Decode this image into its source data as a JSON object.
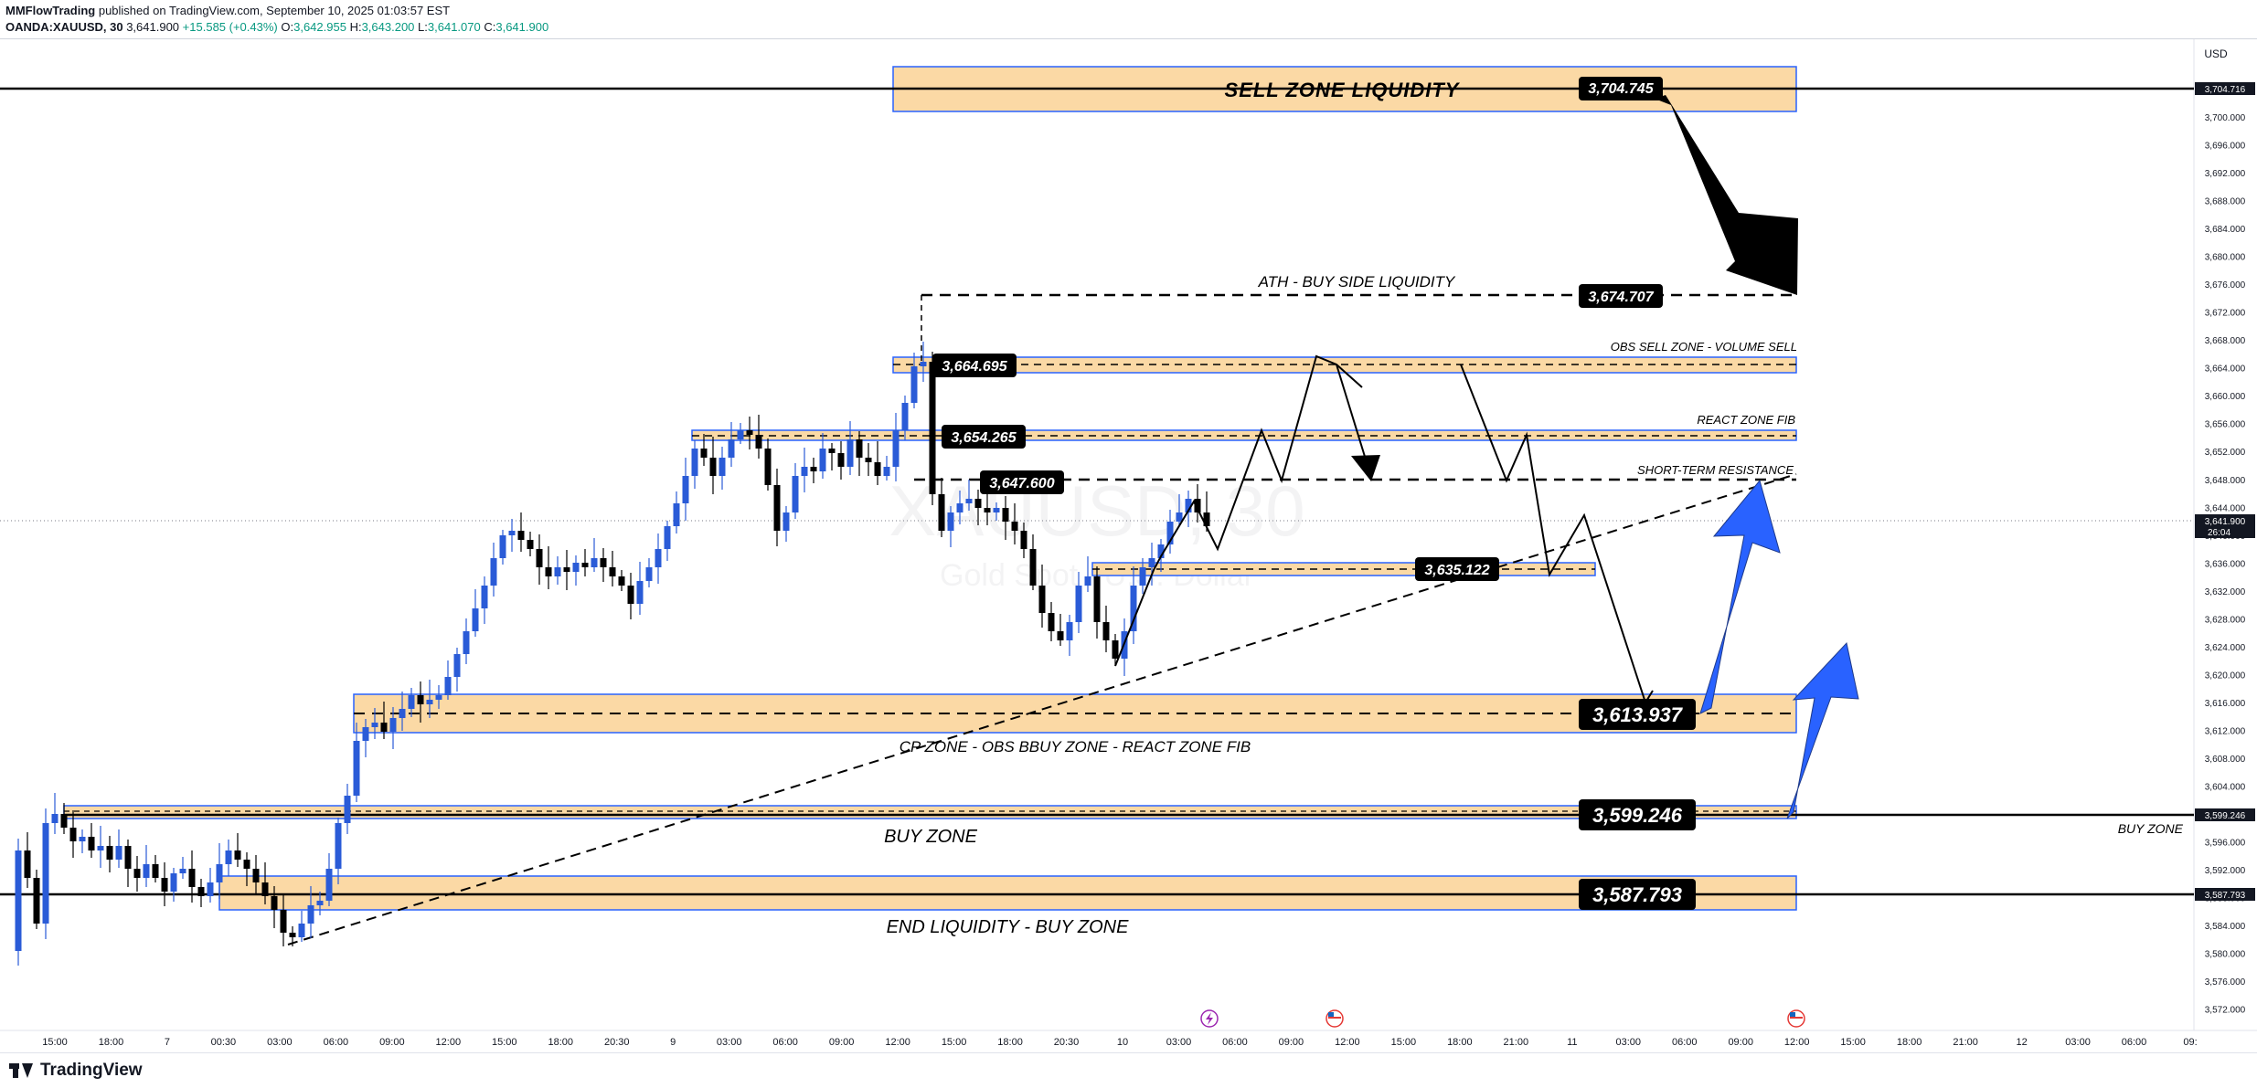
{
  "header": {
    "author": "MMFlowTrading",
    "published_text": "published on TradingView.com, September 10, 2025 01:03:57 EST",
    "symbol": "OANDA:XAUUSD, 30",
    "last": "3,641.900",
    "change": "+15.585 (+0.43%)",
    "o_label": "O:",
    "o_value": "3,642.955",
    "h_label": "H:",
    "h_value": "3,643.200",
    "l_label": "L:",
    "l_value": "3,641.070",
    "c_label": "C:",
    "c_value": "3,641.900"
  },
  "watermark": {
    "main": "XAUUSD, 30",
    "sub": "Gold Spot / U.S. Dollar"
  },
  "price_axis": {
    "currency": "USD",
    "ticks": [
      "3,700.000",
      "3,696.000",
      "3,692.000",
      "3,688.000",
      "3,684.000",
      "3,680.000",
      "3,676.000",
      "3,672.000",
      "3,668.000",
      "3,664.000",
      "3,660.000",
      "3,656.000",
      "3,652.000",
      "3,648.000",
      "3,644.000",
      "3,640.000",
      "3,636.000",
      "3,632.000",
      "3,628.000",
      "3,624.000",
      "3,620.000",
      "3,616.000",
      "3,612.000",
      "3,608.000",
      "3,604.000",
      "3,600.000",
      "3,596.000",
      "3,592.000",
      "3,588.000",
      "3,584.000",
      "3,580.000",
      "3,576.000",
      "3,572.000"
    ],
    "badges": [
      {
        "text": "3,704.716",
        "style": "dark"
      },
      {
        "text": "3,599.246",
        "style": "dark"
      },
      {
        "text": "3,587.793",
        "style": "dark"
      }
    ],
    "current_price": "3,641.900",
    "countdown": "26:04"
  },
  "time_axis": {
    "labels": [
      "15:00",
      "18:00",
      "7",
      "00:30",
      "03:00",
      "06:00",
      "09:00",
      "12:00",
      "15:00",
      "18:00",
      "20:30",
      "9",
      "03:00",
      "06:00",
      "09:00",
      "12:00",
      "15:00",
      "18:00",
      "20:30",
      "10",
      "03:00",
      "06:00",
      "09:00",
      "12:00",
      "15:00",
      "18:00",
      "21:00",
      "11",
      "03:00",
      "06:00",
      "09:00",
      "12:00",
      "15:00",
      "18:00",
      "21:00",
      "12",
      "03:00",
      "06:00",
      "09:"
    ]
  },
  "zones": [
    {
      "label": "SELL ZONE LIQUIDITY",
      "price": "3,704.745"
    },
    {
      "label": "ATH - BUY SIDE LIQUIDITY",
      "price": "3,674.707"
    },
    {
      "label": "OBS SELL ZONE - VOLUME SELL",
      "price": "3,664.695"
    },
    {
      "label": "REACT ZONE FIB",
      "price": "3,654.265"
    },
    {
      "label": "SHORT-TERM RESISTANCE",
      "price": "3,647.600"
    },
    {
      "label": "",
      "price": "3,635.122"
    },
    {
      "label": "CP ZONE - OBS BBUY ZONE - REACT ZONE FIB",
      "price": "3,613.937"
    },
    {
      "label": "BUY ZONE",
      "price": "3,599.246"
    },
    {
      "label": "END LIQUIDITY - BUY ZONE",
      "price": "3,587.793"
    }
  ],
  "right_label": "BUY ZONE",
  "footer": {
    "brand": "TradingView"
  },
  "colors": {
    "bull": "#2a5bd7",
    "bear": "#000000",
    "zone_fill": "#fbd9a5",
    "zone_border": "#2962ff",
    "arrow_blue": "#2962ff"
  }
}
